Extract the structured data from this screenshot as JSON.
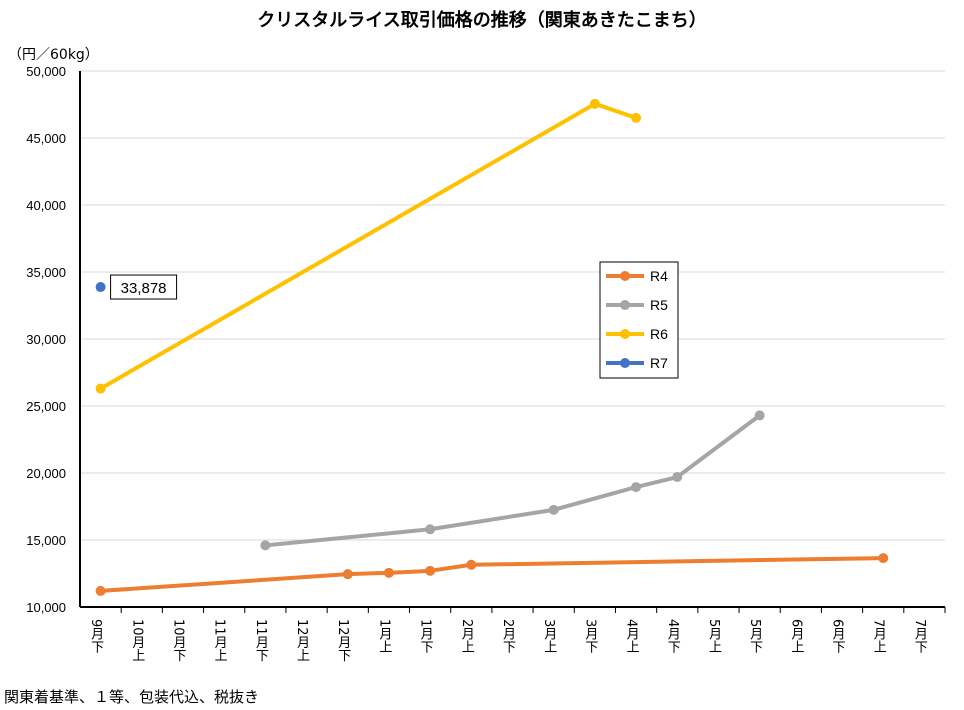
{
  "chart_data": {
    "type": "line",
    "title": "クリスタルライス取引価格の推移（関東あきたこまち）",
    "ylabel": "（円／60kg）",
    "note": "関東着基準、１等、包装代込、税抜き",
    "ylim": [
      10000,
      50000
    ],
    "yticks": [
      10000,
      15000,
      20000,
      25000,
      30000,
      35000,
      40000,
      45000,
      50000
    ],
    "ytick_labels": [
      "10,000",
      "15,000",
      "20,000",
      "25,000",
      "30,000",
      "35,000",
      "40,000",
      "45,000",
      "50,000"
    ],
    "categories": [
      "9月下",
      "10月上",
      "10月下",
      "11月上",
      "11月下",
      "12月上",
      "12月下",
      "1月上",
      "1月下",
      "2月上",
      "2月下",
      "3月上",
      "3月下",
      "4月上",
      "4月下",
      "5月上",
      "5月下",
      "6月上",
      "6月下",
      "7月上",
      "7月下"
    ],
    "grid": true,
    "legend_position": "center-right",
    "series": [
      {
        "name": "R4",
        "color": "#ED7D31",
        "points": [
          [
            0,
            11200
          ],
          [
            6,
            12450
          ],
          [
            7,
            12550
          ],
          [
            8,
            12700
          ],
          [
            9,
            13150
          ],
          [
            19,
            13650
          ]
        ]
      },
      {
        "name": "R5",
        "color": "#A5A5A5",
        "points": [
          [
            4,
            14600
          ],
          [
            8,
            15800
          ],
          [
            11,
            17250
          ],
          [
            13,
            18950
          ],
          [
            14,
            19700
          ],
          [
            16,
            24300
          ]
        ]
      },
      {
        "name": "R6",
        "color": "#FFC000",
        "points": [
          [
            0,
            26300
          ],
          [
            12,
            47550
          ],
          [
            13,
            46500
          ]
        ]
      },
      {
        "name": "R7",
        "color": "#4472C4",
        "points": [
          [
            0,
            33878
          ]
        ],
        "data_label": "33,878"
      }
    ]
  }
}
